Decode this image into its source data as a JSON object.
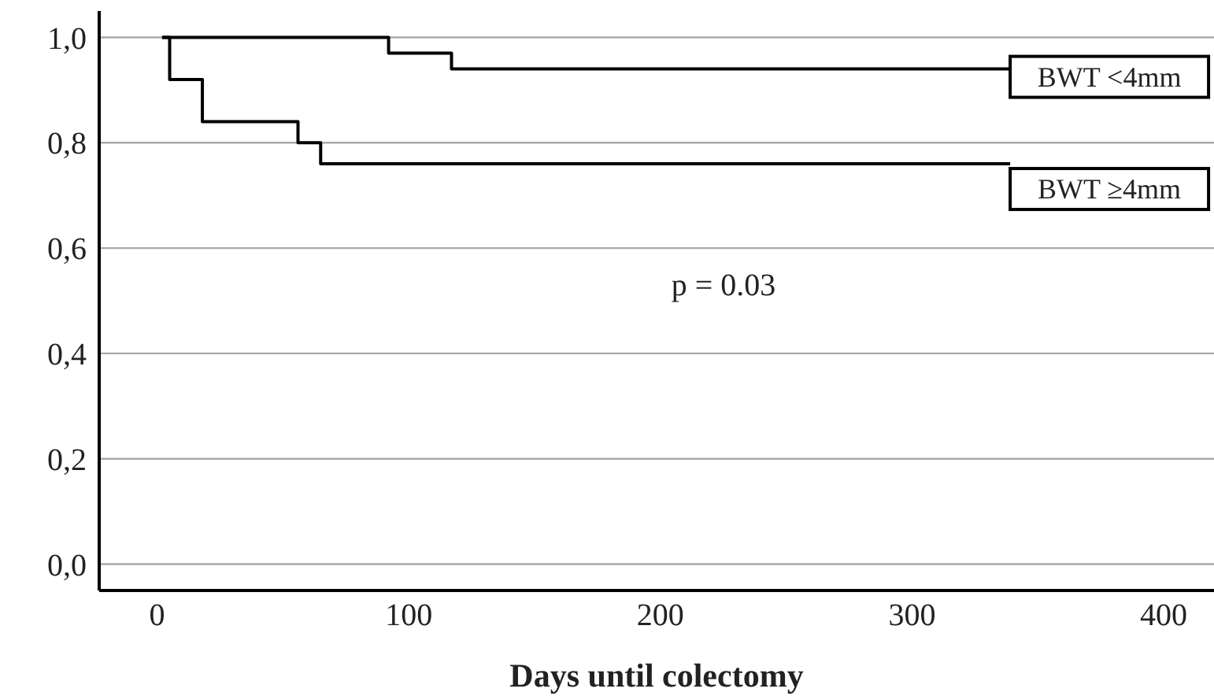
{
  "chart_data": {
    "type": "step",
    "xlabel": "Days until colectomy",
    "annotations": [
      "p = 0.03"
    ],
    "series": [
      {
        "name": "BWT <4mm",
        "color": "#000000",
        "x": [
          2,
          92,
          117,
          339
        ],
        "values": [
          1,
          0.97,
          0.94,
          0.94
        ]
      },
      {
        "name": "BWT ≥4mm",
        "color": "#000000",
        "x": [
          2,
          5,
          18,
          56,
          65,
          339
        ],
        "values": [
          1,
          0.92,
          0.84,
          0.8,
          0.76,
          0.76
        ]
      }
    ],
    "xlim": [
      -23,
      420
    ],
    "xticks": [
      0,
      100,
      200,
      300,
      400
    ],
    "ylim": [
      -0.05,
      1.05
    ],
    "yticks": [
      {
        "value": 0,
        "label": "0,0"
      },
      {
        "value": 0.2,
        "label": "0,2"
      },
      {
        "value": 0.4,
        "label": "0,4"
      },
      {
        "value": 0.6,
        "label": "0,6"
      },
      {
        "value": 0.8,
        "label": "0,8"
      },
      {
        "value": 1,
        "label": "1,0"
      }
    ],
    "grid": "y",
    "legend": false,
    "marker": "none",
    "line_style": "solid"
  }
}
